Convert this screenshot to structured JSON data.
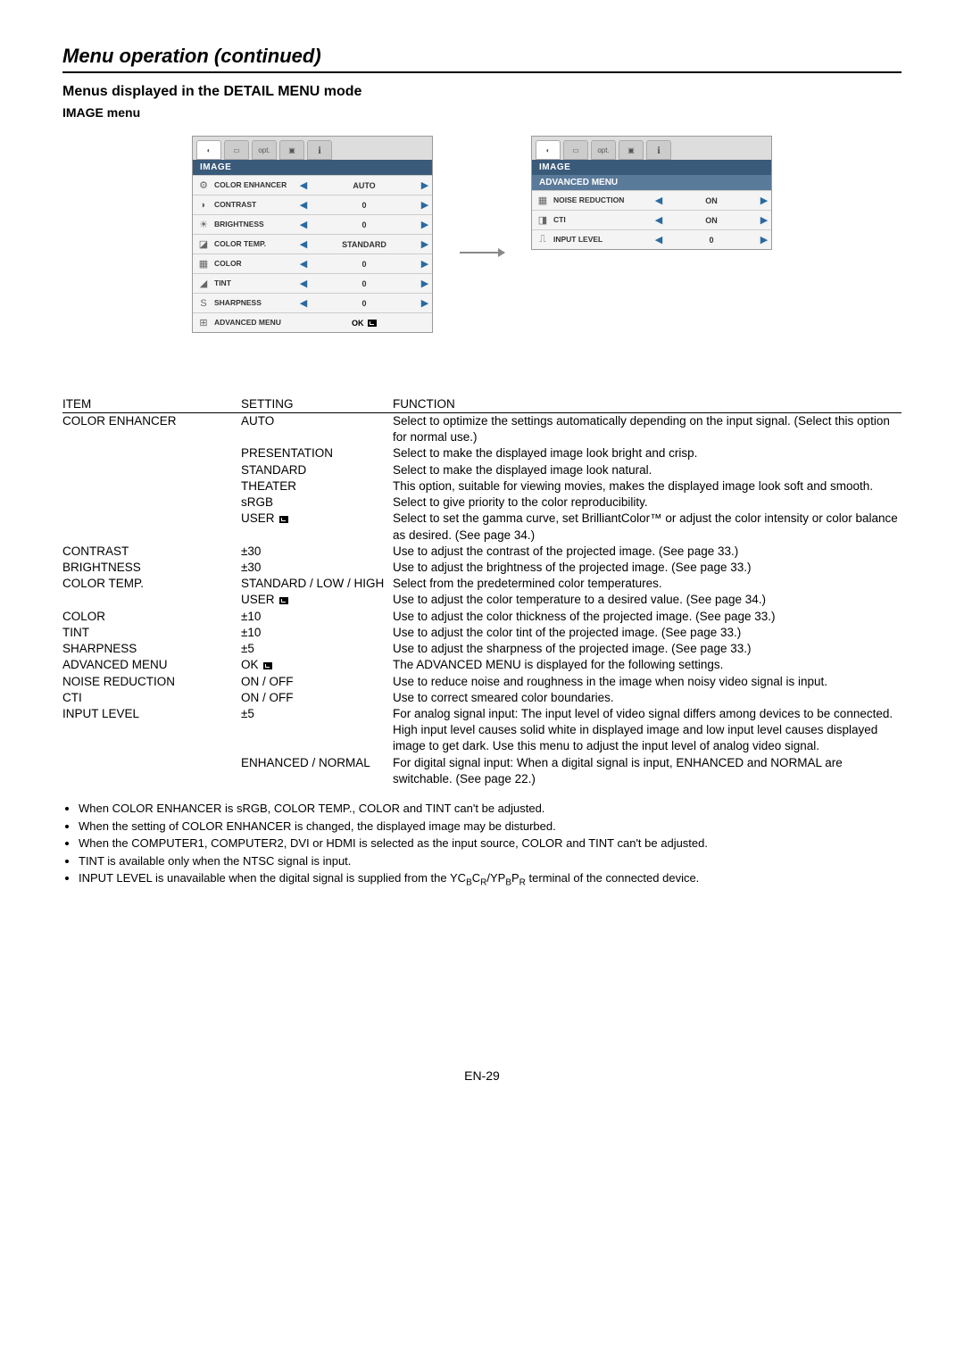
{
  "page": {
    "title": "Menu operation (continued)",
    "section": "Menus displayed in the DETAIL MENU mode",
    "subsection": "IMAGE menu",
    "pageNumber": "EN-29"
  },
  "menuLeft": {
    "title": "IMAGE",
    "rows": [
      {
        "icon": "⚙",
        "label": "COLOR\nENHANCER",
        "value": "AUTO",
        "arrows": true
      },
      {
        "icon": "◗",
        "label": "CONTRAST",
        "value": "0",
        "arrows": true
      },
      {
        "icon": "☀",
        "label": "BRIGHTNESS",
        "value": "0",
        "arrows": true
      },
      {
        "icon": "◪",
        "label": "COLOR TEMP.",
        "value": "STANDARD",
        "arrows": true
      },
      {
        "icon": "▦",
        "label": "COLOR",
        "value": "0",
        "arrows": true
      },
      {
        "icon": "◢",
        "label": "TINT",
        "value": "0",
        "arrows": true
      },
      {
        "icon": "S",
        "label": "SHARPNESS",
        "value": "0",
        "arrows": true
      },
      {
        "icon": "⊞",
        "label": "ADVANCED MENU",
        "ok": "OK",
        "arrows": false
      }
    ]
  },
  "menuRight": {
    "title": "IMAGE",
    "subtitle": "ADVANCED MENU",
    "rows": [
      {
        "icon": "▦",
        "label": "NOISE REDUCTION",
        "value": "ON"
      },
      {
        "icon": "◨",
        "label": "CTI",
        "value": "ON"
      },
      {
        "icon": "⎍",
        "label": "INPUT LEVEL",
        "value": "0"
      }
    ]
  },
  "table": {
    "headers": {
      "item": "ITEM",
      "setting": "SETTING",
      "function": "FUNCTION"
    },
    "rows": [
      {
        "item": "COLOR ENHANCER",
        "setting": "AUTO",
        "function": "Select to optimize the settings automatically depending on the input signal. (Select this option for normal use.)"
      },
      {
        "item": "",
        "setting": "PRESENTATION",
        "function": "Select to make the displayed image look bright and crisp."
      },
      {
        "item": "",
        "setting": "STANDARD",
        "function": "Select to make the displayed image look natural."
      },
      {
        "item": "",
        "setting": "THEATER",
        "function": "This option, suitable for viewing movies, makes the displayed image look soft and smooth."
      },
      {
        "item": "",
        "setting": "sRGB",
        "function": "Select to give priority to the color reproducibility."
      },
      {
        "item": "",
        "setting": "USER",
        "enter": true,
        "function": "Select to set the gamma curve, set BrilliantColor™ or adjust the color intensity or color balance as desired. (See page 34.)"
      },
      {
        "item": "CONTRAST",
        "setting": "±30",
        "function": "Use to adjust the contrast of the projected image. (See page 33.)"
      },
      {
        "item": "BRIGHTNESS",
        "setting": "±30",
        "function": "Use to adjust the brightness of the projected image. (See page 33.)"
      },
      {
        "item": "COLOR TEMP.",
        "setting": "STANDARD / LOW / HIGH",
        "function": "Select from the predetermined color temperatures."
      },
      {
        "item": "",
        "setting": "USER",
        "enter": true,
        "function": "Use to adjust the color temperature to a desired value. (See page 34.)"
      },
      {
        "item": "COLOR",
        "setting": "±10",
        "function": "Use to adjust the color thickness of the projected image. (See page 33.)"
      },
      {
        "item": "TINT",
        "setting": "±10",
        "function": "Use to adjust the color tint of the projected image. (See page 33.)"
      },
      {
        "item": "SHARPNESS",
        "setting": "±5",
        "function": "Use to adjust the sharpness of the projected image. (See page 33.)"
      },
      {
        "item": "ADVANCED MENU",
        "setting": "OK",
        "enter": true,
        "function": "The ADVANCED MENU is displayed for the following settings."
      },
      {
        "item": "NOISE REDUCTION",
        "indent": 1,
        "setting": "ON / OFF",
        "function": "Use to reduce noise and roughness in the image when noisy video signal is input."
      },
      {
        "item": "CTI",
        "indent": 1,
        "setting": "ON / OFF",
        "function": "Use to correct smeared color boundaries."
      },
      {
        "item": "INPUT LEVEL",
        "indent": 1,
        "setting": "±5",
        "function": "For analog signal input:\nThe input level of video signal differs among devices to be connected. High input level causes solid white in displayed image and low input level causes displayed image to get dark. Use this menu to adjust the input level of analog video signal."
      },
      {
        "item": "",
        "setting": "ENHANCED / NORMAL",
        "function": "For digital signal input:\nWhen a digital signal is input, ENHANCED and NORMAL are switchable. (See page 22.)"
      }
    ]
  },
  "notes": [
    "When COLOR ENHANCER is sRGB, COLOR TEMP., COLOR and TINT can't be adjusted.",
    "When the setting of COLOR ENHANCER is changed, the displayed image may be disturbed.",
    "When the COMPUTER1, COMPUTER2, DVI or HDMI is selected as the input source, COLOR and TINT can't be adjusted.",
    "TINT is available only when the NTSC signal is input.",
    "INPUT LEVEL is unavailable when the digital signal is supplied from the YCBCR/YPBPR terminal of the connected device."
  ]
}
